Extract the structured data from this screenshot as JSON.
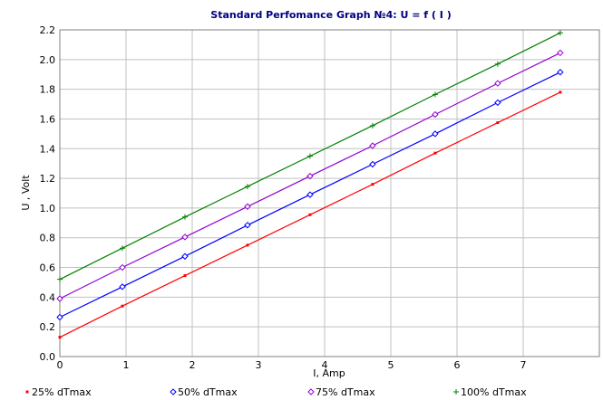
{
  "chart_data": {
    "type": "line",
    "title": "Standard Perfomance Graph №4: U = f ( I )",
    "xlabel": "I, Amp",
    "ylabel": "U , Volt",
    "xlim": [
      0,
      7.7
    ],
    "ylim": [
      0,
      2.2
    ],
    "x_ticks": [
      0,
      1,
      2,
      3,
      4,
      5,
      6,
      7
    ],
    "y_ticks": [
      0.0,
      0.2,
      0.4,
      0.6,
      0.8,
      1.0,
      1.2,
      1.4,
      1.6,
      1.8,
      2.0,
      2.2
    ],
    "x_tick_labels": [
      "0",
      "1",
      "2",
      "3",
      "4",
      "5",
      "6",
      "7"
    ],
    "y_tick_labels": [
      "0.0",
      "0.2",
      "0.4",
      "0.6",
      "0.8",
      "1.0",
      "1.2",
      "1.4",
      "1.6",
      "1.8",
      "2.0",
      "2.2"
    ],
    "grid": true,
    "legend_position": "bottom",
    "x": [
      0,
      0.945,
      1.89,
      2.835,
      3.78,
      4.725,
      5.67,
      6.615,
      7.56
    ],
    "series": [
      {
        "name": "25% dTmax",
        "color": "#ff0000",
        "marker": "square",
        "values": [
          0.13,
          0.34,
          0.545,
          0.75,
          0.955,
          1.16,
          1.37,
          1.575,
          1.78
        ]
      },
      {
        "name": "50% dTmax",
        "color": "#0000ff",
        "marker": "diamond",
        "values": [
          0.265,
          0.47,
          0.675,
          0.885,
          1.09,
          1.295,
          1.5,
          1.71,
          1.915
        ]
      },
      {
        "name": "75% dTmax",
        "color": "#9400d3",
        "marker": "diamond",
        "values": [
          0.39,
          0.6,
          0.805,
          1.01,
          1.215,
          1.42,
          1.63,
          1.84,
          2.045
        ]
      },
      {
        "name": "100% dTmax",
        "color": "#008000",
        "marker": "plus",
        "values": [
          0.52,
          0.73,
          0.94,
          1.145,
          1.35,
          1.555,
          1.765,
          1.97,
          2.18
        ]
      }
    ]
  }
}
